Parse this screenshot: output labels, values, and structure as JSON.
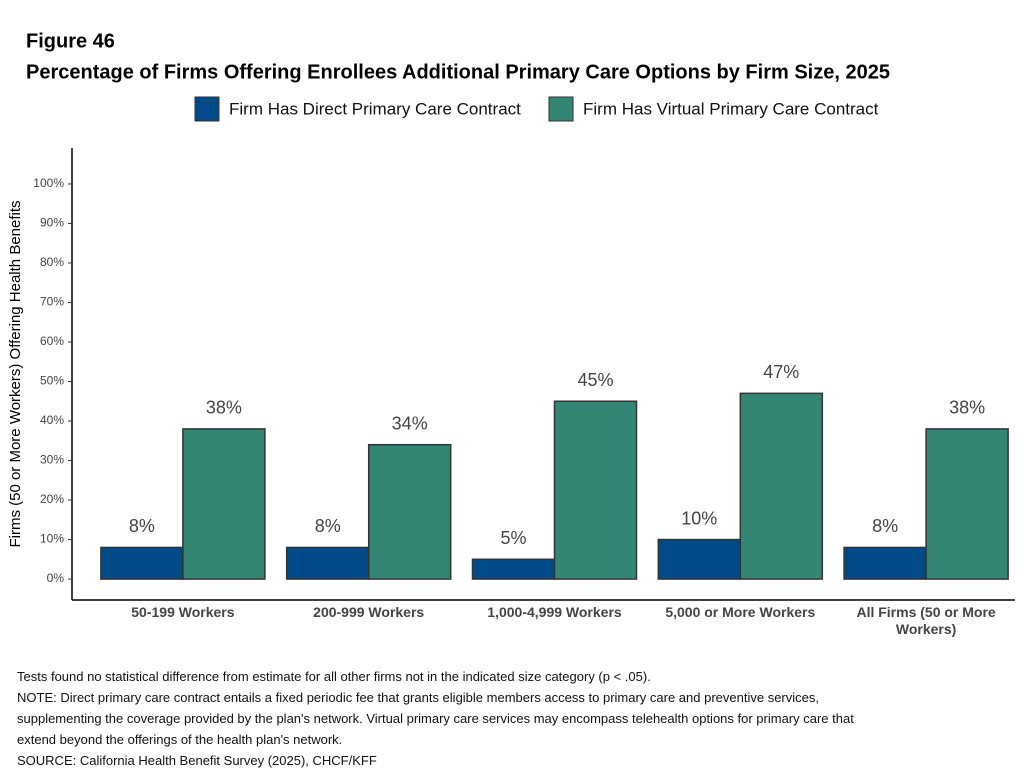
{
  "chart_data": {
    "type": "bar",
    "title": "Figure 46",
    "subtitle": "Percentage of Firms Offering Enrollees Additional Primary Care Options by Firm Size, 2025",
    "y_label": "Firms (50 or More Workers) Offering Health Benefits",
    "categories": [
      "50-199 Workers",
      "200-999 Workers",
      "1,000-4,999 Workers",
      "5,000 or More Workers",
      "All Firms (50 or More Workers)"
    ],
    "series": [
      {
        "name": "Firm Has Direct Primary Care Contract",
        "color": "#004b87",
        "values": [
          8,
          8,
          5,
          10,
          8
        ],
        "value_labels": [
          "8%",
          "8%",
          "5%",
          "10%",
          "8%"
        ]
      },
      {
        "name": "Firm Has Virtual Primary Care Contract",
        "color": "#338673",
        "values": [
          38,
          34,
          45,
          47,
          38
        ],
        "value_labels": [
          "38%",
          "34%",
          "45%",
          "47%",
          "38%"
        ]
      }
    ],
    "ylim": [
      -5.3,
      109.1
    ],
    "yticks": [
      {
        "value": 0,
        "label": "0%"
      },
      {
        "value": 10,
        "label": "10%"
      },
      {
        "value": 20,
        "label": "20%"
      },
      {
        "value": 30,
        "label": "30%"
      },
      {
        "value": 40,
        "label": "40%"
      },
      {
        "value": 50,
        "label": "50%"
      },
      {
        "value": 60,
        "label": "60%"
      },
      {
        "value": 70,
        "label": "70%"
      },
      {
        "value": 80,
        "label": "80%"
      },
      {
        "value": 90,
        "label": "90%"
      },
      {
        "value": 100,
        "label": "100%"
      }
    ],
    "legend": "top",
    "notes": [
      "Tests found no statistical difference from estimate for all other firms not in the indicated size category (p < .05).",
      "NOTE: Direct primary care contract entails a fixed periodic fee that grants eligible members access to primary care and preventive services,",
      "supplementing the coverage provided by the plan's network. Virtual primary care services may encompass telehealth options for primary care that",
      "extend beyond the offerings of the health plan's network.",
      "SOURCE: California Health Benefit Survey (2025), CHCF/KFF"
    ]
  }
}
